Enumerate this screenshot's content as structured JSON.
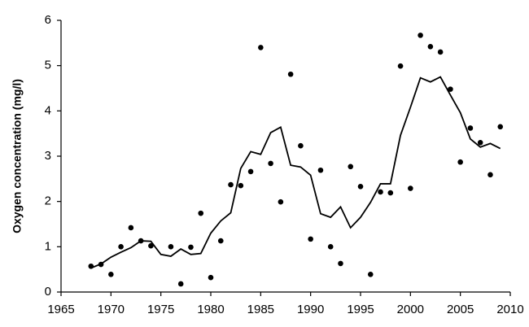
{
  "chart_data": {
    "type": "line",
    "y_label": "Oxygen concentration (mg/l)",
    "xlim": [
      1965,
      2010
    ],
    "xticks": [
      1965,
      1970,
      1975,
      1980,
      1985,
      1990,
      1995,
      2000,
      2005,
      2010
    ],
    "ylim": [
      0,
      6
    ],
    "yticks": [
      0,
      1,
      2,
      3,
      4,
      5,
      6
    ],
    "series": [
      {
        "type": "scatter",
        "color": "#000000",
        "x": [
          1968,
          1969,
          1970,
          1971,
          1972,
          1973,
          1974,
          1976,
          1977,
          1978,
          1979,
          1980,
          1981,
          1982,
          1983,
          1984,
          1985,
          1986,
          1987,
          1988,
          1989,
          1990,
          1991,
          1992,
          1993,
          1994,
          1995,
          1996,
          1997,
          1998,
          1999,
          2000,
          2001,
          2002,
          2003,
          2004,
          2005,
          2006,
          2007,
          2008,
          2009
        ],
        "values": [
          0.57,
          0.61,
          0.39,
          1.0,
          1.42,
          1.13,
          1.02,
          1.0,
          0.18,
          0.99,
          1.74,
          0.32,
          1.13,
          2.37,
          2.35,
          2.66,
          5.4,
          2.84,
          1.99,
          4.81,
          3.23,
          1.17,
          2.69,
          1.0,
          0.63,
          2.77,
          2.33,
          0.39,
          2.21,
          2.19,
          4.99,
          2.29,
          5.67,
          5.42,
          5.3,
          4.48,
          2.87,
          3.62,
          3.3,
          2.59,
          3.65
        ]
      },
      {
        "type": "line",
        "color": "#000000",
        "x": [
          1968,
          1969,
          1970,
          1971,
          1972,
          1973,
          1974,
          1975,
          1976,
          1977,
          1978,
          1979,
          1980,
          1981,
          1982,
          1983,
          1984,
          1985,
          1986,
          1987,
          1988,
          1989,
          1990,
          1991,
          1992,
          1993,
          1994,
          1995,
          1996,
          1997,
          1998,
          1999,
          2000,
          2001,
          2002,
          2003,
          2004,
          2005,
          2006,
          2007,
          2008,
          2009
        ],
        "values": [
          0.53,
          0.62,
          0.77,
          0.88,
          0.98,
          1.13,
          1.12,
          0.83,
          0.79,
          0.95,
          0.83,
          0.85,
          1.3,
          1.57,
          1.75,
          2.73,
          3.1,
          3.04,
          3.52,
          3.64,
          2.8,
          2.76,
          2.58,
          1.73,
          1.65,
          1.88,
          1.42,
          1.65,
          1.98,
          2.39,
          2.39,
          3.46,
          4.08,
          4.73,
          4.64,
          4.75,
          4.35,
          3.96,
          3.38,
          3.2,
          3.28,
          3.17
        ]
      }
    ]
  }
}
